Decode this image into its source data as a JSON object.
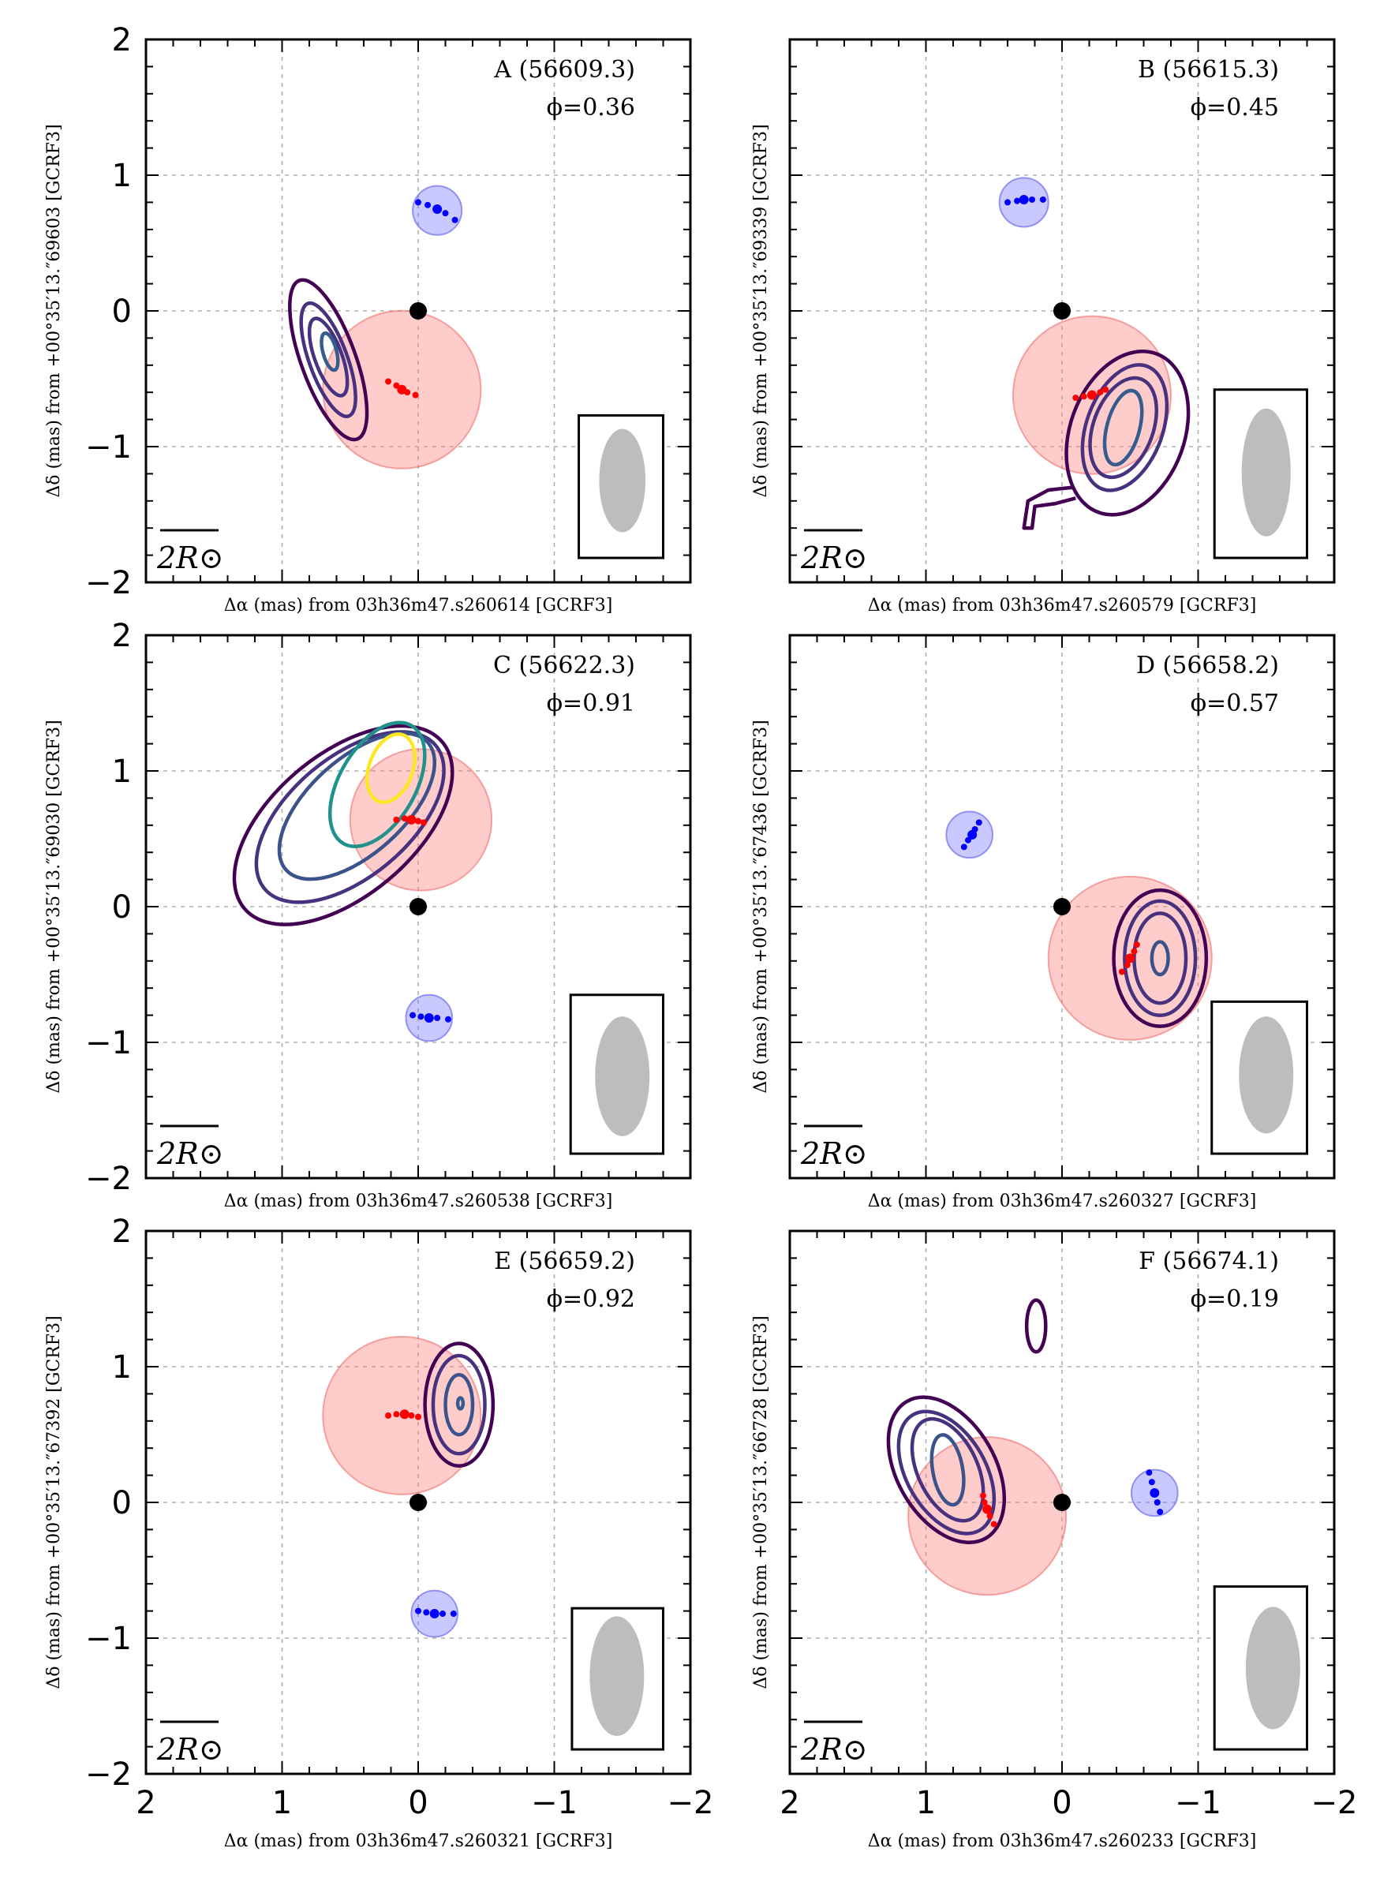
{
  "chart_data": [
    {
      "type": "contour",
      "panel": "A",
      "label": "A (56609.3)",
      "mjd": 56609.3,
      "phase": 0.36,
      "phase_text": "ϕ=0.36",
      "xlabel": "Δα (mas) from 03h36m47.s260614 [GCRF3]",
      "ylabel": "Δδ (mas) from +00°35′13.″69603 [GCRF3]",
      "xlim": [
        2,
        -2
      ],
      "ylim": [
        -2,
        2
      ],
      "x_ticks": [
        2,
        1,
        0,
        -1,
        -2
      ],
      "y_ticks": [
        2,
        1,
        0,
        -1,
        -2
      ],
      "x_tick_labels_shown": false,
      "y_tick_labels_shown": true,
      "origin_point": [
        0,
        0
      ],
      "red_disk": {
        "center": [
          0.12,
          -0.58
        ],
        "radius": 0.58
      },
      "red_track": [
        [
          0.22,
          -0.52
        ],
        [
          0.16,
          -0.55
        ],
        [
          0.12,
          -0.58
        ],
        [
          0.08,
          -0.6
        ],
        [
          0.02,
          -0.62
        ]
      ],
      "blue_disk": {
        "center": [
          -0.14,
          0.74
        ],
        "radius": 0.18
      },
      "blue_track": [
        [
          0,
          0.8
        ],
        [
          -0.07,
          0.78
        ],
        [
          -0.14,
          0.75
        ],
        [
          -0.2,
          0.72
        ],
        [
          -0.27,
          0.67
        ]
      ],
      "contours": [
        {
          "color": "#440154",
          "center": [
            0.66,
            -0.36
          ],
          "rx": 0.2,
          "ry": 0.62,
          "angle": -20
        },
        {
          "color": "#46327e",
          "center": [
            0.66,
            -0.36
          ],
          "rx": 0.14,
          "ry": 0.44,
          "angle": -20
        },
        {
          "color": "#46327e",
          "center": [
            0.66,
            -0.34
          ],
          "rx": 0.1,
          "ry": 0.3,
          "angle": -20
        },
        {
          "color": "#365c8d",
          "center": [
            0.65,
            -0.3
          ],
          "rx": 0.05,
          "ry": 0.14,
          "angle": -15
        }
      ],
      "beam": {
        "center": [
          -1.5,
          -1.25
        ],
        "rx": 0.17,
        "ry": 0.38,
        "box": [
          -1.18,
          -0.77,
          -1.8,
          -1.82
        ]
      },
      "scalebar_text": "2R⊙"
    },
    {
      "type": "contour",
      "panel": "B",
      "label": "B (56615.3)",
      "mjd": 56615.3,
      "phase": 0.45,
      "phase_text": "ϕ=0.45",
      "xlabel": "Δα (mas) from 03h36m47.s260579 [GCRF3]",
      "ylabel": "Δδ (mas) from +00°35′13.″69339 [GCRF3]",
      "xlim": [
        2,
        -2
      ],
      "ylim": [
        -2,
        2
      ],
      "x_ticks": [
        2,
        1,
        0,
        -1,
        -2
      ],
      "y_ticks": [
        2,
        1,
        0,
        -1,
        -2
      ],
      "x_tick_labels_shown": false,
      "y_tick_labels_shown": false,
      "origin_point": [
        0,
        0
      ],
      "red_disk": {
        "center": [
          -0.22,
          -0.62
        ],
        "radius": 0.58
      },
      "red_track": [
        [
          -0.1,
          -0.64
        ],
        [
          -0.16,
          -0.63
        ],
        [
          -0.22,
          -0.62
        ],
        [
          -0.28,
          -0.6
        ],
        [
          -0.32,
          -0.58
        ]
      ],
      "blue_disk": {
        "center": [
          0.28,
          0.8
        ],
        "radius": 0.18
      },
      "blue_track": [
        [
          0.4,
          0.8
        ],
        [
          0.33,
          0.81
        ],
        [
          0.28,
          0.82
        ],
        [
          0.22,
          0.82
        ],
        [
          0.14,
          0.82
        ]
      ],
      "contours": [
        {
          "color": "#440154",
          "center": [
            -0.48,
            -0.9
          ],
          "rx": 0.42,
          "ry": 0.62,
          "angle": 20
        },
        {
          "color": "#46327e",
          "center": [
            -0.46,
            -0.86
          ],
          "rx": 0.28,
          "ry": 0.48,
          "angle": 20
        },
        {
          "color": "#46327e",
          "center": [
            -0.45,
            -0.86
          ],
          "rx": 0.22,
          "ry": 0.38,
          "angle": 20
        },
        {
          "color": "#365c8d",
          "center": [
            -0.45,
            -0.86
          ],
          "rx": 0.12,
          "ry": 0.28,
          "angle": 15
        }
      ],
      "contour_tail": [
        [
          -0.08,
          -1.3
        ],
        [
          0.1,
          -1.32
        ],
        [
          0.25,
          -1.4
        ],
        [
          0.28,
          -1.6
        ],
        [
          0.22,
          -1.6
        ],
        [
          0.2,
          -1.44
        ],
        [
          0.05,
          -1.42
        ],
        [
          -0.1,
          -1.38
        ]
      ],
      "beam": {
        "center": [
          -1.5,
          -1.19
        ],
        "rx": 0.18,
        "ry": 0.47,
        "box": [
          -1.12,
          -0.58,
          -1.8,
          -1.82
        ]
      },
      "scalebar_text": "2R⊙"
    },
    {
      "type": "contour",
      "panel": "C",
      "label": "C (56622.3)",
      "mjd": 56622.3,
      "phase": 0.91,
      "phase_text": "ϕ=0.91",
      "xlabel": "Δα (mas) from 03h36m47.s260538 [GCRF3]",
      "ylabel": "Δδ (mas) from +00°35′13.″69030 [GCRF3]",
      "xlim": [
        2,
        -2
      ],
      "ylim": [
        -2,
        2
      ],
      "x_ticks": [
        2,
        1,
        0,
        -1,
        -2
      ],
      "y_ticks": [
        2,
        1,
        0,
        -1,
        -2
      ],
      "x_tick_labels_shown": false,
      "y_tick_labels_shown": true,
      "origin_point": [
        0,
        0
      ],
      "red_disk": {
        "center": [
          -0.02,
          0.64
        ],
        "radius": 0.52
      },
      "red_track": [
        [
          0.16,
          0.64
        ],
        [
          0.1,
          0.65
        ],
        [
          0.05,
          0.64
        ],
        [
          0.0,
          0.63
        ],
        [
          -0.04,
          0.62
        ]
      ],
      "blue_disk": {
        "center": [
          -0.08,
          -0.82
        ],
        "radius": 0.17
      },
      "blue_track": [
        [
          0.04,
          -0.8
        ],
        [
          -0.02,
          -0.81
        ],
        [
          -0.08,
          -0.82
        ],
        [
          -0.14,
          -0.82
        ],
        [
          -0.22,
          -0.83
        ]
      ],
      "contours": [
        {
          "color": "#440154",
          "center": [
            0.55,
            0.6
          ],
          "rx": 0.52,
          "ry": 0.95,
          "angle": 50
        },
        {
          "color": "#46327e",
          "center": [
            0.5,
            0.66
          ],
          "rx": 0.44,
          "ry": 0.82,
          "angle": 50
        },
        {
          "color": "#3b528b",
          "center": [
            0.45,
            0.74
          ],
          "rx": 0.35,
          "ry": 0.7,
          "angle": 48
        },
        {
          "color": "#21918c",
          "center": [
            0.3,
            0.9
          ],
          "rx": 0.28,
          "ry": 0.5,
          "angle": 30
        },
        {
          "color": "#fde725",
          "center": [
            0.2,
            1.02
          ],
          "rx": 0.16,
          "ry": 0.26,
          "angle": 20
        }
      ],
      "beam": {
        "center": [
          -1.5,
          -1.25
        ],
        "rx": 0.2,
        "ry": 0.44,
        "box": [
          -1.12,
          -0.65,
          -1.8,
          -1.82
        ]
      },
      "scalebar_text": "2R⊙"
    },
    {
      "type": "contour",
      "panel": "D",
      "label": "D (56658.2)",
      "mjd": 56658.2,
      "phase": 0.57,
      "phase_text": "ϕ=0.57",
      "xlabel": "Δα (mas) from 03h36m47.s260327 [GCRF3]",
      "ylabel": "Δδ (mas) from +00°35′13.″67436 [GCRF3]",
      "xlim": [
        2,
        -2
      ],
      "ylim": [
        -2,
        2
      ],
      "x_ticks": [
        2,
        1,
        0,
        -1,
        -2
      ],
      "y_ticks": [
        2,
        1,
        0,
        -1,
        -2
      ],
      "x_tick_labels_shown": false,
      "y_tick_labels_shown": false,
      "origin_point": [
        0,
        0
      ],
      "red_disk": {
        "center": [
          -0.5,
          -0.38
        ],
        "radius": 0.6
      },
      "red_track": [
        [
          -0.44,
          -0.48
        ],
        [
          -0.48,
          -0.43
        ],
        [
          -0.5,
          -0.38
        ],
        [
          -0.53,
          -0.33
        ],
        [
          -0.55,
          -0.28
        ]
      ],
      "blue_disk": {
        "center": [
          0.68,
          0.53
        ],
        "radius": 0.17
      },
      "blue_track": [
        [
          0.72,
          0.44
        ],
        [
          0.69,
          0.49
        ],
        [
          0.66,
          0.53
        ],
        [
          0.64,
          0.57
        ],
        [
          0.61,
          0.62
        ]
      ],
      "contours": [
        {
          "color": "#440154",
          "center": [
            -0.72,
            -0.38
          ],
          "rx": 0.34,
          "ry": 0.5,
          "angle": 0
        },
        {
          "color": "#46327e",
          "center": [
            -0.72,
            -0.38
          ],
          "rx": 0.26,
          "ry": 0.42,
          "angle": 0
        },
        {
          "color": "#46327e",
          "center": [
            -0.72,
            -0.38
          ],
          "rx": 0.19,
          "ry": 0.33,
          "angle": 0
        },
        {
          "color": "#3b528b",
          "center": [
            -0.72,
            -0.38
          ],
          "rx": 0.06,
          "ry": 0.12,
          "angle": 0
        }
      ],
      "beam": {
        "center": [
          -1.5,
          -1.24
        ],
        "rx": 0.2,
        "ry": 0.43,
        "box": [
          -1.1,
          -0.7,
          -1.8,
          -1.82
        ]
      },
      "scalebar_text": "2R⊙"
    },
    {
      "type": "contour",
      "panel": "E",
      "label": "E (56659.2)",
      "mjd": 56659.2,
      "phase": 0.92,
      "phase_text": "ϕ=0.92",
      "xlabel": "Δα (mas) from 03h36m47.s260321 [GCRF3]",
      "ylabel": "Δδ (mas) from +00°35′13.″67392 [GCRF3]",
      "xlim": [
        2,
        -2
      ],
      "ylim": [
        -2,
        2
      ],
      "x_ticks": [
        2,
        1,
        0,
        -1,
        -2
      ],
      "y_ticks": [
        2,
        1,
        0,
        -1,
        -2
      ],
      "x_tick_labels_shown": true,
      "y_tick_labels_shown": true,
      "origin_point": [
        0,
        0
      ],
      "red_disk": {
        "center": [
          0.12,
          0.64
        ],
        "radius": 0.58
      },
      "red_track": [
        [
          0.22,
          0.64
        ],
        [
          0.16,
          0.65
        ],
        [
          0.1,
          0.65
        ],
        [
          0.05,
          0.64
        ],
        [
          0.0,
          0.63
        ]
      ],
      "blue_disk": {
        "center": [
          -0.12,
          -0.82
        ],
        "radius": 0.17
      },
      "blue_track": [
        [
          0.0,
          -0.8
        ],
        [
          -0.06,
          -0.81
        ],
        [
          -0.12,
          -0.82
        ],
        [
          -0.18,
          -0.82
        ],
        [
          -0.26,
          -0.82
        ]
      ],
      "contours": [
        {
          "color": "#440154",
          "center": [
            -0.3,
            0.72
          ],
          "rx": 0.25,
          "ry": 0.45,
          "angle": 0
        },
        {
          "color": "#46327e",
          "center": [
            -0.3,
            0.72
          ],
          "rx": 0.19,
          "ry": 0.36,
          "angle": 0
        },
        {
          "color": "#3b528b",
          "center": [
            -0.3,
            0.72
          ],
          "rx": 0.1,
          "ry": 0.22,
          "angle": 0
        },
        {
          "color": "#365c8d",
          "center": [
            -0.31,
            0.73
          ],
          "rx": 0.02,
          "ry": 0.04,
          "angle": 0
        }
      ],
      "beam": {
        "center": [
          -1.46,
          -1.28
        ],
        "rx": 0.2,
        "ry": 0.44,
        "box": [
          -1.13,
          -0.78,
          -1.8,
          -1.82
        ]
      },
      "scalebar_text": "2R⊙"
    },
    {
      "type": "contour",
      "panel": "F",
      "label": "F (56674.1)",
      "mjd": 56674.1,
      "phase": 0.19,
      "phase_text": "ϕ=0.19",
      "xlabel": "Δα (mas) from 03h36m47.s260233 [GCRF3]",
      "ylabel": "Δδ (mas) from +00°35′13.″66728 [GCRF3]",
      "xlim": [
        2,
        -2
      ],
      "ylim": [
        -2,
        2
      ],
      "x_ticks": [
        2,
        1,
        0,
        -1,
        -2
      ],
      "y_ticks": [
        2,
        1,
        0,
        -1,
        -2
      ],
      "x_tick_labels_shown": true,
      "y_tick_labels_shown": false,
      "origin_point": [
        0,
        0
      ],
      "red_disk": {
        "center": [
          0.55,
          -0.1
        ],
        "radius": 0.58
      },
      "red_track": [
        [
          0.58,
          0.05
        ],
        [
          0.57,
          0.0
        ],
        [
          0.55,
          -0.05
        ],
        [
          0.53,
          -0.1
        ],
        [
          0.5,
          -0.16
        ]
      ],
      "blue_disk": {
        "center": [
          -0.68,
          0.07
        ],
        "radius": 0.17
      },
      "blue_track": [
        [
          -0.64,
          0.22
        ],
        [
          -0.66,
          0.15
        ],
        [
          -0.68,
          0.07
        ],
        [
          -0.7,
          0.0
        ],
        [
          -0.72,
          -0.07
        ]
      ],
      "contours": [
        {
          "color": "#440154",
          "center": [
            0.85,
            0.24
          ],
          "rx": 0.36,
          "ry": 0.58,
          "angle": -30
        },
        {
          "color": "#46327e",
          "center": [
            0.85,
            0.22
          ],
          "rx": 0.29,
          "ry": 0.49,
          "angle": -30
        },
        {
          "color": "#46327e",
          "center": [
            0.84,
            0.24
          ],
          "rx": 0.22,
          "ry": 0.4,
          "angle": -25
        },
        {
          "color": "#3b528b",
          "center": [
            0.84,
            0.24
          ],
          "rx": 0.11,
          "ry": 0.26,
          "angle": -10
        },
        {
          "color": "#440154",
          "center": [
            0.19,
            1.3
          ],
          "rx": 0.07,
          "ry": 0.19,
          "angle": 0
        }
      ],
      "beam": {
        "center": [
          -1.55,
          -1.22
        ],
        "rx": 0.2,
        "ry": 0.45,
        "box": [
          -1.12,
          -0.62,
          -1.8,
          -1.82
        ]
      },
      "scalebar_text": "2R⊙"
    }
  ]
}
